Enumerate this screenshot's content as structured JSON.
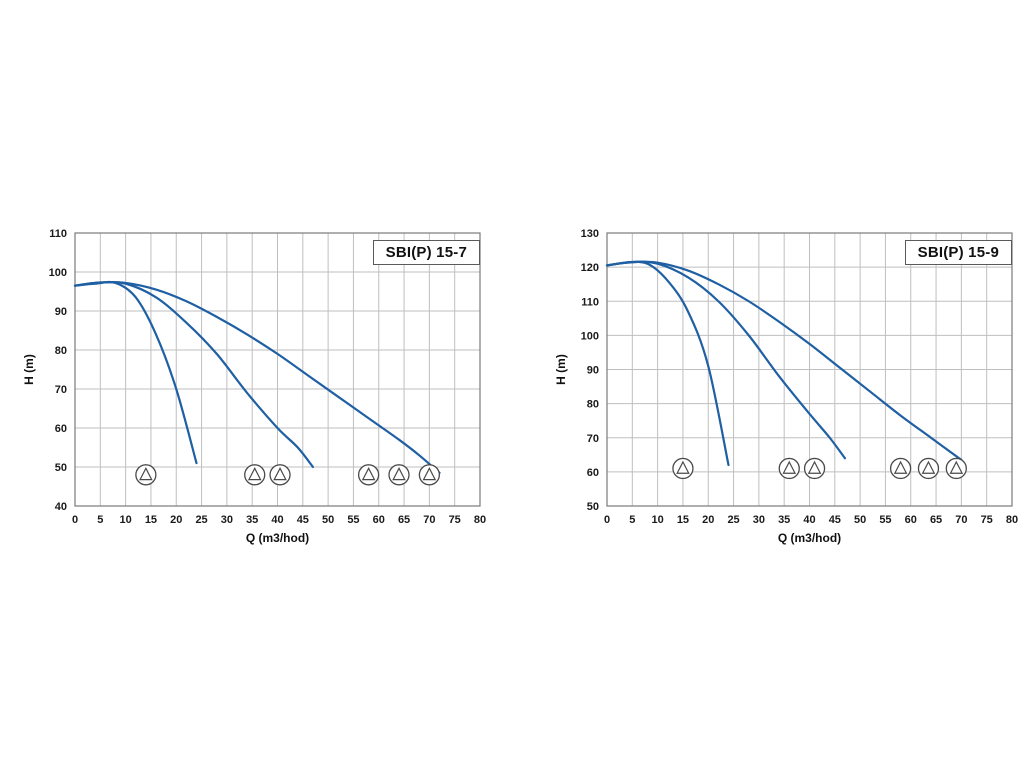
{
  "chart_data": [
    {
      "type": "line",
      "title": "SBI(P) 15-7",
      "xlabel": "Q (m3/hod)",
      "ylabel": "H (m)",
      "xlim": [
        0,
        80
      ],
      "ylim": [
        40,
        110
      ],
      "xticks": [
        0,
        5,
        10,
        15,
        20,
        25,
        30,
        35,
        40,
        45,
        50,
        55,
        60,
        65,
        70,
        75,
        80
      ],
      "yticks": [
        40,
        50,
        60,
        70,
        80,
        90,
        100,
        110
      ],
      "grid": true,
      "legend": "none",
      "curve_color": "#1f5fa3",
      "series": [
        {
          "name": "1 pump",
          "points": [
            [
              0,
              96.5
            ],
            [
              4,
              97
            ],
            [
              8,
              97.2
            ],
            [
              12,
              93.5
            ],
            [
              16,
              84
            ],
            [
              20,
              70
            ],
            [
              24,
              51
            ]
          ]
        },
        {
          "name": "2 pumps",
          "points": [
            [
              0,
              96.5
            ],
            [
              5,
              97.3
            ],
            [
              10,
              97
            ],
            [
              16,
              93.5
            ],
            [
              22,
              87
            ],
            [
              28,
              79
            ],
            [
              34,
              69
            ],
            [
              40,
              60
            ],
            [
              44,
              55
            ],
            [
              47,
              50
            ]
          ]
        },
        {
          "name": "3 pumps",
          "points": [
            [
              0,
              96.5
            ],
            [
              5,
              97.3
            ],
            [
              10,
              97.2
            ],
            [
              16,
              95.5
            ],
            [
              22,
              92.5
            ],
            [
              28,
              88.5
            ],
            [
              34,
              84
            ],
            [
              40,
              79
            ],
            [
              46,
              73.5
            ],
            [
              52,
              68
            ],
            [
              58,
              62.5
            ],
            [
              64,
              57
            ],
            [
              68,
              53
            ],
            [
              72,
              48.5
            ]
          ]
        }
      ],
      "pump_markers": {
        "h": 48,
        "groups": [
          [
            14
          ],
          [
            35.5,
            40.5
          ],
          [
            58,
            64,
            70
          ]
        ]
      }
    },
    {
      "type": "line",
      "title": "SBI(P) 15-9",
      "xlabel": "Q (m3/hod)",
      "ylabel": "H (m)",
      "xlim": [
        0,
        80
      ],
      "ylim": [
        50,
        130
      ],
      "xticks": [
        0,
        5,
        10,
        15,
        20,
        25,
        30,
        35,
        40,
        45,
        50,
        55,
        60,
        65,
        70,
        75,
        80
      ],
      "yticks": [
        50,
        60,
        70,
        80,
        90,
        100,
        110,
        120,
        130
      ],
      "grid": true,
      "legend": "none",
      "curve_color": "#1f5fa3",
      "series": [
        {
          "name": "1 pump",
          "points": [
            [
              0,
              120.5
            ],
            [
              4,
              121.3
            ],
            [
              8,
              121
            ],
            [
              12,
              116
            ],
            [
              16,
              107
            ],
            [
              20,
              91
            ],
            [
              24,
              62
            ]
          ]
        },
        {
          "name": "2 pumps",
          "points": [
            [
              0,
              120.5
            ],
            [
              5,
              121.5
            ],
            [
              10,
              121
            ],
            [
              16,
              117
            ],
            [
              22,
              110
            ],
            [
              28,
              100
            ],
            [
              34,
              88
            ],
            [
              40,
              77
            ],
            [
              44,
              70
            ],
            [
              47,
              64
            ]
          ]
        },
        {
          "name": "3 pumps",
          "points": [
            [
              0,
              120.5
            ],
            [
              5,
              121.5
            ],
            [
              10,
              121.3
            ],
            [
              16,
              119
            ],
            [
              22,
              115
            ],
            [
              28,
              110
            ],
            [
              34,
              104
            ],
            [
              40,
              97.5
            ],
            [
              46,
              90.5
            ],
            [
              52,
              83.5
            ],
            [
              58,
              76.5
            ],
            [
              64,
              70
            ],
            [
              70,
              63.5
            ]
          ]
        }
      ],
      "pump_markers": {
        "h": 61,
        "groups": [
          [
            15
          ],
          [
            36,
            41
          ],
          [
            58,
            63.5,
            69
          ]
        ]
      }
    }
  ],
  "style": {
    "grid_color": "#bfbfbf",
    "frame_color": "#7a7a7a",
    "tick_label_color": "#1a1a1a",
    "pump_icon_color": "#4a4a4a"
  }
}
